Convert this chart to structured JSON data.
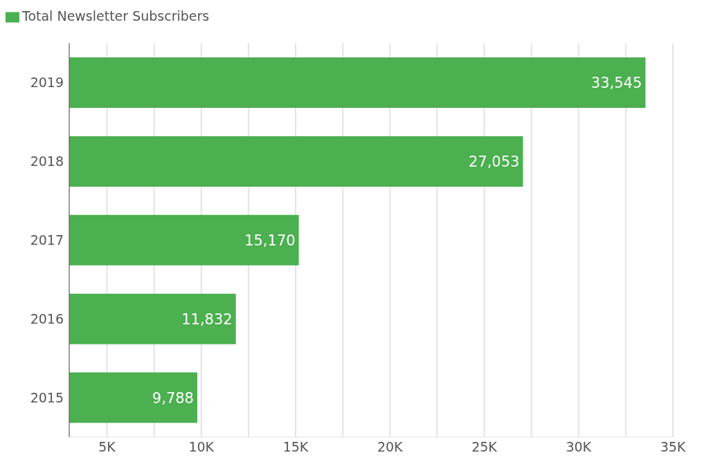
{
  "chart_data": {
    "type": "bar",
    "orientation": "horizontal",
    "categories": [
      "2019",
      "2018",
      "2017",
      "2016",
      "2015"
    ],
    "series": [
      {
        "name": "Total Newsletter Subscribers",
        "color": "#4caf50",
        "values": [
          33545,
          27053,
          15170,
          11832,
          9788
        ],
        "value_labels": [
          "33,545",
          "27,053",
          "15,170",
          "11,832",
          "9,788"
        ]
      }
    ],
    "xlim": [
      3000,
      35000
    ],
    "xticks": [
      {
        "value": 5000,
        "label": "5K"
      },
      {
        "value": 7500,
        "label": null
      },
      {
        "value": 10000,
        "label": "10K"
      },
      {
        "value": 12500,
        "label": null
      },
      {
        "value": 15000,
        "label": "15K"
      },
      {
        "value": 17500,
        "label": null
      },
      {
        "value": 20000,
        "label": "20K"
      },
      {
        "value": 22500,
        "label": null
      },
      {
        "value": 25000,
        "label": "25K"
      },
      {
        "value": 27500,
        "label": null
      },
      {
        "value": 30000,
        "label": "30K"
      },
      {
        "value": 32500,
        "label": null
      },
      {
        "value": 35000,
        "label": "35K"
      }
    ],
    "grid": "x",
    "legend": "top left"
  }
}
